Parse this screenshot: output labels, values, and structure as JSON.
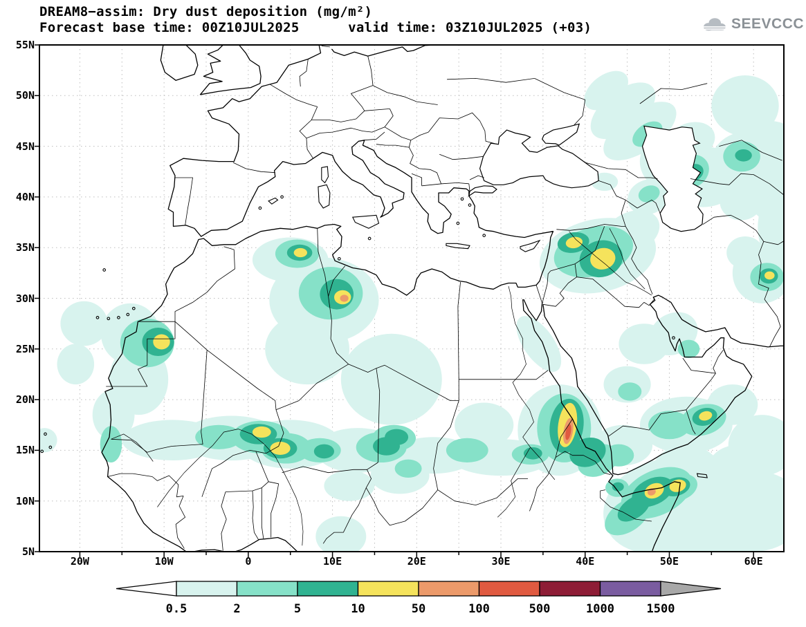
{
  "header": {
    "title": "DREAM8−assim: Dry dust deposition (mg/m²)",
    "subtitle": "Forecast base time: 00Z10JUL2025      valid time: 03Z10JUL2025 (+03)",
    "logo_text": "SEEVCCC"
  },
  "axes": {
    "lat_labels": [
      "55N",
      "50N",
      "45N",
      "40N",
      "35N",
      "30N",
      "25N",
      "20N",
      "15N",
      "10N",
      "5N"
    ],
    "lat_values": [
      55,
      50,
      45,
      40,
      35,
      30,
      25,
      20,
      15,
      10,
      5
    ],
    "lon_labels": [
      "20W",
      "10W",
      "0",
      "10E",
      "20E",
      "30E",
      "40E",
      "50E",
      "60E"
    ],
    "lon_values": [
      -20,
      -10,
      0,
      10,
      20,
      30,
      40,
      50,
      60
    ]
  },
  "legend": {
    "tick_labels": [
      "0.5",
      "2",
      "5",
      "10",
      "50",
      "100",
      "500",
      "1000",
      "1500"
    ],
    "colors": [
      "#ffffff",
      "#d8f3ee",
      "#86e1c8",
      "#30b391",
      "#f5e35c",
      "#ec9a6a",
      "#e05a40",
      "#8e1d36",
      "#7a5ca0",
      "#a8a8a8"
    ]
  },
  "chart_data": {
    "type": "heatmap",
    "title": "DREAM8−assim: Dry dust deposition (mg/m²)",
    "units": "mg/m²",
    "forecast_base_time": "00Z10JUL2025",
    "valid_time": "03Z10JUL2025 (+03)",
    "lon_range_deg": [
      -24.8,
      63.6
    ],
    "lat_range_deg": [
      5,
      55
    ],
    "contour_levels": [
      0.5,
      2,
      5,
      10,
      50,
      100,
      500,
      1000,
      1500
    ],
    "level_colors": [
      "#ffffff",
      "#d8f3ee",
      "#86e1c8",
      "#30b391",
      "#f5e35c",
      "#ec9a6a",
      "#e05a40",
      "#8e1d36",
      "#7a5ca0",
      "#a8a8a8"
    ],
    "plume_format": "[lon_deg, lat_deg, rx_deg, ry_deg, rotation_deg, level_bin] where level_bin 1=≥0.5, 2=≥2, 3=≥5, 4=≥10, 5=≥50, 6=≥100 mg/m²",
    "plumes": [
      [
        -19.5,
        27.5,
        2.8,
        2.2,
        0,
        1
      ],
      [
        -20.5,
        23.5,
        2.2,
        2.0,
        0,
        1
      ],
      [
        -14.0,
        26.5,
        3.5,
        3.0,
        0,
        1
      ],
      [
        -13.0,
        22.0,
        3.5,
        3.5,
        0,
        1
      ],
      [
        -16.0,
        18.5,
        2.5,
        2.5,
        0,
        1
      ],
      [
        -24.2,
        16.0,
        1.5,
        1.2,
        0,
        1
      ],
      [
        -12.0,
        25.6,
        3.2,
        2.4,
        0,
        2
      ],
      [
        -10.7,
        25.7,
        1.9,
        1.4,
        0,
        3
      ],
      [
        -10.3,
        25.7,
        1.0,
        0.75,
        0,
        4
      ],
      [
        -16.3,
        15.6,
        1.3,
        1.8,
        0,
        2
      ],
      [
        -9.0,
        16.0,
        6.0,
        2.0,
        0,
        1
      ],
      [
        -2.0,
        16.2,
        6.0,
        2.2,
        0,
        1
      ],
      [
        5.0,
        15.6,
        6.0,
        2.4,
        0,
        1
      ],
      [
        13.0,
        15.0,
        5.0,
        2.2,
        0,
        1
      ],
      [
        -3.5,
        16.3,
        2.8,
        1.2,
        0,
        2
      ],
      [
        1.5,
        16.3,
        3.5,
        1.6,
        0,
        2
      ],
      [
        4.5,
        15.2,
        3.0,
        1.5,
        0,
        2
      ],
      [
        8.5,
        15.0,
        2.5,
        1.2,
        0,
        2
      ],
      [
        15.8,
        15.3,
        3.0,
        1.5,
        0,
        2
      ],
      [
        1.2,
        16.6,
        2.2,
        1.0,
        0,
        3
      ],
      [
        3.8,
        15.2,
        2.0,
        1.0,
        0,
        3
      ],
      [
        16.4,
        15.4,
        1.6,
        0.9,
        0,
        3
      ],
      [
        9.0,
        14.9,
        1.2,
        0.7,
        0,
        3
      ],
      [
        1.6,
        16.8,
        1.1,
        0.55,
        0,
        4
      ],
      [
        3.8,
        15.2,
        1.2,
        0.65,
        0,
        4
      ],
      [
        22.0,
        14.5,
        5.0,
        1.8,
        0,
        1
      ],
      [
        30.0,
        14.3,
        6.0,
        1.8,
        0,
        1
      ],
      [
        26.0,
        15.0,
        2.5,
        1.2,
        0,
        2
      ],
      [
        33.5,
        14.6,
        2.2,
        1.0,
        0,
        2
      ],
      [
        33.8,
        14.7,
        1.1,
        0.6,
        0,
        3
      ],
      [
        5.0,
        33.8,
        4.5,
        2.2,
        0,
        1
      ],
      [
        5.8,
        34.4,
        2.6,
        1.4,
        0,
        2
      ],
      [
        6.1,
        34.5,
        1.5,
        0.8,
        0,
        3
      ],
      [
        6.2,
        34.5,
        0.8,
        0.45,
        0,
        4
      ],
      [
        9.0,
        29.8,
        6.5,
        4.2,
        0,
        1
      ],
      [
        9.8,
        30.5,
        3.8,
        2.6,
        0,
        2
      ],
      [
        10.5,
        30.4,
        2.0,
        1.5,
        0,
        3
      ],
      [
        11.2,
        30.1,
        1.0,
        0.7,
        0,
        4
      ],
      [
        11.4,
        30.0,
        0.5,
        0.35,
        0,
        5
      ],
      [
        7.0,
        25.0,
        5.0,
        3.5,
        0,
        1
      ],
      [
        17.0,
        22.0,
        6.0,
        4.5,
        0,
        1
      ],
      [
        17.3,
        16.2,
        2.6,
        1.3,
        0,
        2
      ],
      [
        17.6,
        16.3,
        1.4,
        0.8,
        0,
        3
      ],
      [
        34.5,
        25.5,
        1.8,
        3.2,
        -35,
        1
      ],
      [
        28.0,
        17.5,
        3.5,
        2.2,
        0,
        1
      ],
      [
        37.0,
        17.0,
        5.0,
        4.5,
        0,
        1
      ],
      [
        37.5,
        17.2,
        3.2,
        3.4,
        0,
        2
      ],
      [
        37.8,
        17.4,
        2.0,
        2.7,
        8,
        3
      ],
      [
        37.9,
        17.5,
        1.1,
        2.2,
        8,
        4
      ],
      [
        38.0,
        16.9,
        0.55,
        1.3,
        10,
        5
      ],
      [
        38.0,
        16.8,
        0.3,
        0.8,
        10,
        6
      ],
      [
        40.3,
        14.8,
        2.2,
        1.4,
        -20,
        3
      ],
      [
        41.5,
        14.0,
        2.5,
        1.5,
        -25,
        2
      ],
      [
        44.5,
        15.5,
        3.5,
        2.0,
        0,
        1
      ],
      [
        44.0,
        14.5,
        1.8,
        1.1,
        0,
        2
      ],
      [
        52.0,
        17.5,
        5.5,
        2.8,
        0,
        1
      ],
      [
        50.0,
        17.5,
        2.5,
        1.4,
        0,
        2
      ],
      [
        54.0,
        18.0,
        2.8,
        1.5,
        -15,
        2
      ],
      [
        54.2,
        18.3,
        1.5,
        0.85,
        -15,
        3
      ],
      [
        54.3,
        18.4,
        0.8,
        0.45,
        -15,
        4
      ],
      [
        57.5,
        19.5,
        3.0,
        2.0,
        0,
        1
      ],
      [
        49.0,
        9.5,
        7.0,
        4.5,
        -20,
        1
      ],
      [
        55.0,
        7.5,
        7.0,
        3.5,
        0,
        1
      ],
      [
        60.0,
        9.0,
        6.0,
        4.0,
        0,
        1
      ],
      [
        52.0,
        13.0,
        4.0,
        2.5,
        0,
        1
      ],
      [
        48.5,
        10.8,
        4.5,
        2.2,
        -25,
        2
      ],
      [
        45.0,
        8.5,
        3.0,
        1.5,
        -35,
        2
      ],
      [
        51.0,
        11.3,
        2.4,
        1.3,
        -18,
        2
      ],
      [
        48.0,
        10.9,
        2.6,
        1.3,
        -25,
        3
      ],
      [
        50.8,
        11.4,
        1.7,
        0.9,
        -15,
        3
      ],
      [
        45.8,
        9.3,
        2.2,
        1.0,
        -35,
        3
      ],
      [
        48.2,
        11.0,
        1.2,
        0.7,
        -25,
        4
      ],
      [
        51.0,
        11.5,
        1.0,
        0.6,
        -15,
        4
      ],
      [
        47.9,
        10.9,
        0.5,
        0.35,
        -25,
        5
      ],
      [
        43.8,
        11.3,
        1.4,
        0.9,
        0,
        2
      ],
      [
        43.9,
        11.4,
        0.7,
        0.45,
        0,
        3
      ],
      [
        61.0,
        15.5,
        4.0,
        3.0,
        0,
        1
      ],
      [
        58.0,
        13.0,
        3.5,
        2.5,
        0,
        1
      ],
      [
        47.0,
        25.5,
        3.0,
        2.0,
        0,
        1
      ],
      [
        50.5,
        26.5,
        3.0,
        2.0,
        -30,
        1
      ],
      [
        52.3,
        25.0,
        1.3,
        0.9,
        0,
        2
      ],
      [
        45.0,
        21.5,
        2.8,
        1.8,
        0,
        1
      ],
      [
        45.3,
        20.8,
        1.4,
        0.9,
        0,
        2
      ],
      [
        41.5,
        34.2,
        7.0,
        3.6,
        -12,
        1
      ],
      [
        41.0,
        34.6,
        4.8,
        2.4,
        -15,
        2
      ],
      [
        38.6,
        35.5,
        1.9,
        1.0,
        -10,
        3
      ],
      [
        38.7,
        35.5,
        1.0,
        0.55,
        -10,
        4
      ],
      [
        41.9,
        33.9,
        2.6,
        1.8,
        -15,
        3
      ],
      [
        42.1,
        33.9,
        1.5,
        1.05,
        -15,
        4
      ],
      [
        45.5,
        36.5,
        3.5,
        2.0,
        -25,
        1
      ],
      [
        47.5,
        40.0,
        2.5,
        1.7,
        -20,
        1
      ],
      [
        47.6,
        40.3,
        1.3,
        0.8,
        -20,
        2
      ],
      [
        42.3,
        41.5,
        1.6,
        0.9,
        0,
        1
      ],
      [
        50.5,
        43.5,
        4.0,
        3.0,
        0,
        1
      ],
      [
        54.0,
        42.0,
        4.5,
        3.0,
        0,
        1
      ],
      [
        52.5,
        42.5,
        2.3,
        1.6,
        -30,
        2
      ],
      [
        52.9,
        42.4,
        1.2,
        0.8,
        -30,
        3
      ],
      [
        49.4,
        44.1,
        2.0,
        1.2,
        -30,
        2
      ],
      [
        46.5,
        46.5,
        5.0,
        2.0,
        -35,
        1
      ],
      [
        44.5,
        48.5,
        4.5,
        2.0,
        -38,
        1
      ],
      [
        47.4,
        46.2,
        2.0,
        1.0,
        -35,
        2
      ],
      [
        42.5,
        50.5,
        3.0,
        1.5,
        -38,
        1
      ],
      [
        52.5,
        45.5,
        3.0,
        1.8,
        -20,
        1
      ],
      [
        59.5,
        43.5,
        4.5,
        3.0,
        0,
        1
      ],
      [
        62.0,
        45.0,
        3.5,
        2.5,
        0,
        1
      ],
      [
        58.6,
        44.0,
        2.2,
        1.5,
        0,
        2
      ],
      [
        58.8,
        44.1,
        1.0,
        0.6,
        0,
        3
      ],
      [
        59.0,
        49.0,
        4.0,
        3.0,
        0,
        1
      ],
      [
        62.5,
        40.0,
        3.0,
        2.5,
        0,
        1
      ],
      [
        63.0,
        37.0,
        2.5,
        3.5,
        0,
        1
      ],
      [
        58.5,
        39.5,
        2.5,
        1.8,
        0,
        1
      ],
      [
        61.0,
        32.5,
        3.5,
        3.0,
        0,
        1
      ],
      [
        61.6,
        32.1,
        2.0,
        1.4,
        0,
        2
      ],
      [
        61.8,
        32.2,
        1.1,
        0.75,
        0,
        3
      ],
      [
        61.9,
        32.25,
        0.6,
        0.4,
        0,
        4
      ],
      [
        59.0,
        34.5,
        2.2,
        1.6,
        0,
        1
      ],
      [
        12.0,
        11.5,
        3.0,
        1.5,
        0,
        1
      ],
      [
        18.0,
        12.5,
        3.5,
        1.8,
        0,
        1
      ],
      [
        19.0,
        13.2,
        1.6,
        0.9,
        0,
        2
      ],
      [
        11.0,
        6.5,
        3.0,
        2.0,
        0,
        1
      ]
    ]
  }
}
